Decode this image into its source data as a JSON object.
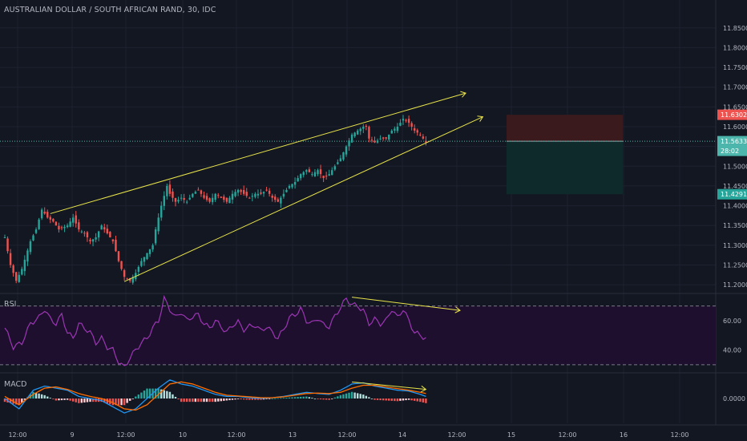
{
  "title": "AUSTRALIAN DOLLAR / SOUTH AFRICAN RAND, 30, IDC",
  "colors": {
    "background": "#131722",
    "up": "#26a69a",
    "down": "#ef5350",
    "trendline": "#e8e34a",
    "rsi_line": "#9c36b5",
    "rsi_bg": "#1f0f2e",
    "macd_line": "#2196f3",
    "signal_line": "#ff6d00",
    "text": "#b2b5be",
    "stop_zone": "#3a1a1d",
    "target_zone": "#0e2a2b",
    "stop_badge": "#ef5350",
    "target_badge": "#26a69a",
    "price_badge": "#4db6ac"
  },
  "price_axis": {
    "ticks": [
      "11.8500",
      "11.8000",
      "11.7500",
      "11.7000",
      "11.6500",
      "11.6000",
      "11.5500",
      "11.5000",
      "11.4500",
      "11.4000",
      "11.3500",
      "11.3000",
      "11.2500",
      "11.2000"
    ],
    "stop_label": "11.6302",
    "current_price_label": "11.5633",
    "countdown_label": "28:02",
    "target_label": "11.4291"
  },
  "time_axis": {
    "labels": [
      "12:00",
      "9",
      "12:00",
      "10",
      "12:00",
      "13",
      "12:00",
      "14",
      "12:00",
      "15",
      "12:00",
      "16",
      "12:00"
    ]
  },
  "rsi": {
    "label": "RSI",
    "ticks": [
      "60.00",
      "40.00"
    ]
  },
  "macd": {
    "label": "MACD",
    "ticks": [
      "0.0000"
    ]
  },
  "chart_data": {
    "type": "candlestick",
    "title": "AUSTRALIAN DOLLAR / SOUTH AFRICAN RAND, 30, IDC",
    "ylim": [
      11.18,
      11.88
    ],
    "close_path": [
      [
        0,
        11.32
      ],
      [
        2,
        11.25
      ],
      [
        4,
        11.21
      ],
      [
        6,
        11.24
      ],
      [
        9,
        11.31
      ],
      [
        11,
        11.34
      ],
      [
        13,
        11.39
      ],
      [
        15,
        11.37
      ],
      [
        17,
        11.36
      ],
      [
        19,
        11.34
      ],
      [
        22,
        11.35
      ],
      [
        24,
        11.37
      ],
      [
        26,
        11.34
      ],
      [
        28,
        11.33
      ],
      [
        30,
        11.31
      ],
      [
        32,
        11.32
      ],
      [
        34,
        11.35
      ],
      [
        36,
        11.33
      ],
      [
        38,
        11.31
      ],
      [
        40,
        11.26
      ],
      [
        42,
        11.22
      ],
      [
        44,
        11.21
      ],
      [
        46,
        11.23
      ],
      [
        48,
        11.26
      ],
      [
        50,
        11.28
      ],
      [
        52,
        11.3
      ],
      [
        53,
        11.34
      ],
      [
        55,
        11.4
      ],
      [
        57,
        11.45
      ],
      [
        58,
        11.43
      ],
      [
        60,
        11.41
      ],
      [
        62,
        11.42
      ],
      [
        64,
        11.41
      ],
      [
        66,
        11.43
      ],
      [
        68,
        11.44
      ],
      [
        70,
        11.42
      ],
      [
        72,
        11.41
      ],
      [
        74,
        11.43
      ],
      [
        76,
        11.42
      ],
      [
        78,
        11.41
      ],
      [
        80,
        11.43
      ],
      [
        82,
        11.44
      ],
      [
        84,
        11.43
      ],
      [
        86,
        11.42
      ],
      [
        88,
        11.43
      ],
      [
        90,
        11.43
      ],
      [
        92,
        11.44
      ],
      [
        94,
        11.42
      ],
      [
        96,
        11.41
      ],
      [
        98,
        11.43
      ],
      [
        100,
        11.45
      ],
      [
        102,
        11.46
      ],
      [
        104,
        11.48
      ],
      [
        106,
        11.49
      ],
      [
        108,
        11.48
      ],
      [
        110,
        11.49
      ],
      [
        112,
        11.47
      ],
      [
        114,
        11.48
      ],
      [
        116,
        11.5
      ],
      [
        118,
        11.52
      ],
      [
        120,
        11.55
      ],
      [
        122,
        11.58
      ],
      [
        124,
        11.59
      ],
      [
        126,
        11.6
      ],
      [
        127,
        11.6
      ],
      [
        128,
        11.57
      ],
      [
        130,
        11.56
      ],
      [
        132,
        11.57
      ],
      [
        134,
        11.57
      ],
      [
        136,
        11.59
      ],
      [
        138,
        11.6
      ],
      [
        140,
        11.62
      ],
      [
        142,
        11.61
      ],
      [
        144,
        11.59
      ],
      [
        146,
        11.58
      ],
      [
        148,
        11.56
      ]
    ],
    "ohlc_note": "each candle close follows close_path; up = close above open, down = close below open",
    "trendlines": [
      {
        "name": "upper",
        "from": [
          16,
          11.38
        ],
        "to": [
          162,
          11.685
        ]
      },
      {
        "name": "lower",
        "from": [
          42,
          11.208
        ],
        "to": [
          168,
          11.625
        ]
      }
    ],
    "zones": [
      {
        "name": "stop",
        "from_price": 11.6302,
        "to_price": 11.5633
      },
      {
        "name": "target",
        "from_price": 11.5633,
        "to_price": 11.4291
      }
    ],
    "rsi_series": {
      "ylim": [
        25,
        78
      ],
      "overbought": 70,
      "oversold": 30,
      "close_path": [
        [
          0,
          55
        ],
        [
          3,
          42
        ],
        [
          6,
          45
        ],
        [
          9,
          58
        ],
        [
          12,
          62
        ],
        [
          14,
          68
        ],
        [
          16,
          61
        ],
        [
          18,
          58
        ],
        [
          20,
          64
        ],
        [
          22,
          52
        ],
        [
          24,
          48
        ],
        [
          26,
          58
        ],
        [
          28,
          55
        ],
        [
          30,
          52
        ],
        [
          32,
          45
        ],
        [
          34,
          48
        ],
        [
          36,
          42
        ],
        [
          38,
          40
        ],
        [
          40,
          32
        ],
        [
          42,
          28
        ],
        [
          44,
          35
        ],
        [
          46,
          40
        ],
        [
          48,
          45
        ],
        [
          50,
          48
        ],
        [
          52,
          55
        ],
        [
          54,
          60
        ],
        [
          56,
          75
        ],
        [
          58,
          68
        ],
        [
          60,
          62
        ],
        [
          62,
          66
        ],
        [
          64,
          60
        ],
        [
          66,
          63
        ],
        [
          68,
          64
        ],
        [
          70,
          58
        ],
        [
          72,
          55
        ],
        [
          74,
          60
        ],
        [
          76,
          56
        ],
        [
          78,
          52
        ],
        [
          80,
          57
        ],
        [
          82,
          59
        ],
        [
          84,
          54
        ],
        [
          86,
          56
        ],
        [
          88,
          57
        ],
        [
          90,
          53
        ],
        [
          92,
          56
        ],
        [
          94,
          52
        ],
        [
          96,
          48
        ],
        [
          98,
          54
        ],
        [
          100,
          62
        ],
        [
          102,
          64
        ],
        [
          104,
          68
        ],
        [
          106,
          60
        ],
        [
          108,
          58
        ],
        [
          110,
          62
        ],
        [
          112,
          57
        ],
        [
          114,
          56
        ],
        [
          116,
          63
        ],
        [
          118,
          69
        ],
        [
          120,
          75
        ],
        [
          122,
          71
        ],
        [
          124,
          70
        ],
        [
          126,
          67
        ],
        [
          128,
          58
        ],
        [
          130,
          61
        ],
        [
          132,
          58
        ],
        [
          134,
          60
        ],
        [
          136,
          68
        ],
        [
          138,
          62
        ],
        [
          140,
          68
        ],
        [
          142,
          60
        ],
        [
          144,
          52
        ],
        [
          146,
          50
        ],
        [
          148,
          48
        ]
      ],
      "divergence_line": {
        "from": [
          122,
          76
        ],
        "to": [
          160,
          67
        ]
      }
    },
    "macd_series": {
      "ylim": [
        -0.06,
        0.06
      ],
      "zero_line": 0,
      "macd_path": [
        [
          0,
          0.0
        ],
        [
          5,
          -0.025
        ],
        [
          10,
          0.02
        ],
        [
          14,
          0.03
        ],
        [
          18,
          0.025
        ],
        [
          22,
          0.02
        ],
        [
          26,
          0.005
        ],
        [
          30,
          0.0
        ],
        [
          34,
          -0.005
        ],
        [
          38,
          -0.02
        ],
        [
          42,
          -0.035
        ],
        [
          46,
          -0.025
        ],
        [
          50,
          0.0
        ],
        [
          54,
          0.025
        ],
        [
          58,
          0.045
        ],
        [
          62,
          0.035
        ],
        [
          66,
          0.03
        ],
        [
          70,
          0.02
        ],
        [
          74,
          0.01
        ],
        [
          78,
          0.005
        ],
        [
          82,
          0.005
        ],
        [
          86,
          0.002
        ],
        [
          90,
          0.0
        ],
        [
          94,
          0.002
        ],
        [
          98,
          0.005
        ],
        [
          102,
          0.01
        ],
        [
          106,
          0.015
        ],
        [
          110,
          0.012
        ],
        [
          114,
          0.01
        ],
        [
          118,
          0.02
        ],
        [
          122,
          0.035
        ],
        [
          126,
          0.038
        ],
        [
          130,
          0.03
        ],
        [
          134,
          0.025
        ],
        [
          138,
          0.02
        ],
        [
          142,
          0.018
        ],
        [
          146,
          0.01
        ],
        [
          148,
          0.005
        ]
      ],
      "signal_path": [
        [
          0,
          0.005
        ],
        [
          5,
          -0.015
        ],
        [
          10,
          0.01
        ],
        [
          14,
          0.025
        ],
        [
          18,
          0.028
        ],
        [
          22,
          0.022
        ],
        [
          26,
          0.012
        ],
        [
          30,
          0.005
        ],
        [
          34,
          0.0
        ],
        [
          38,
          -0.01
        ],
        [
          42,
          -0.025
        ],
        [
          46,
          -0.028
        ],
        [
          50,
          -0.015
        ],
        [
          54,
          0.01
        ],
        [
          58,
          0.035
        ],
        [
          62,
          0.04
        ],
        [
          66,
          0.035
        ],
        [
          70,
          0.025
        ],
        [
          74,
          0.015
        ],
        [
          78,
          0.008
        ],
        [
          82,
          0.006
        ],
        [
          86,
          0.004
        ],
        [
          90,
          0.002
        ],
        [
          94,
          0.002
        ],
        [
          98,
          0.004
        ],
        [
          102,
          0.008
        ],
        [
          106,
          0.012
        ],
        [
          110,
          0.013
        ],
        [
          114,
          0.012
        ],
        [
          118,
          0.015
        ],
        [
          122,
          0.025
        ],
        [
          126,
          0.032
        ],
        [
          130,
          0.032
        ],
        [
          134,
          0.028
        ],
        [
          138,
          0.024
        ],
        [
          142,
          0.02
        ],
        [
          146,
          0.015
        ],
        [
          148,
          0.012
        ]
      ],
      "divergence_line": {
        "from": [
          122,
          0.04
        ],
        "to": [
          148,
          0.022
        ]
      }
    }
  }
}
